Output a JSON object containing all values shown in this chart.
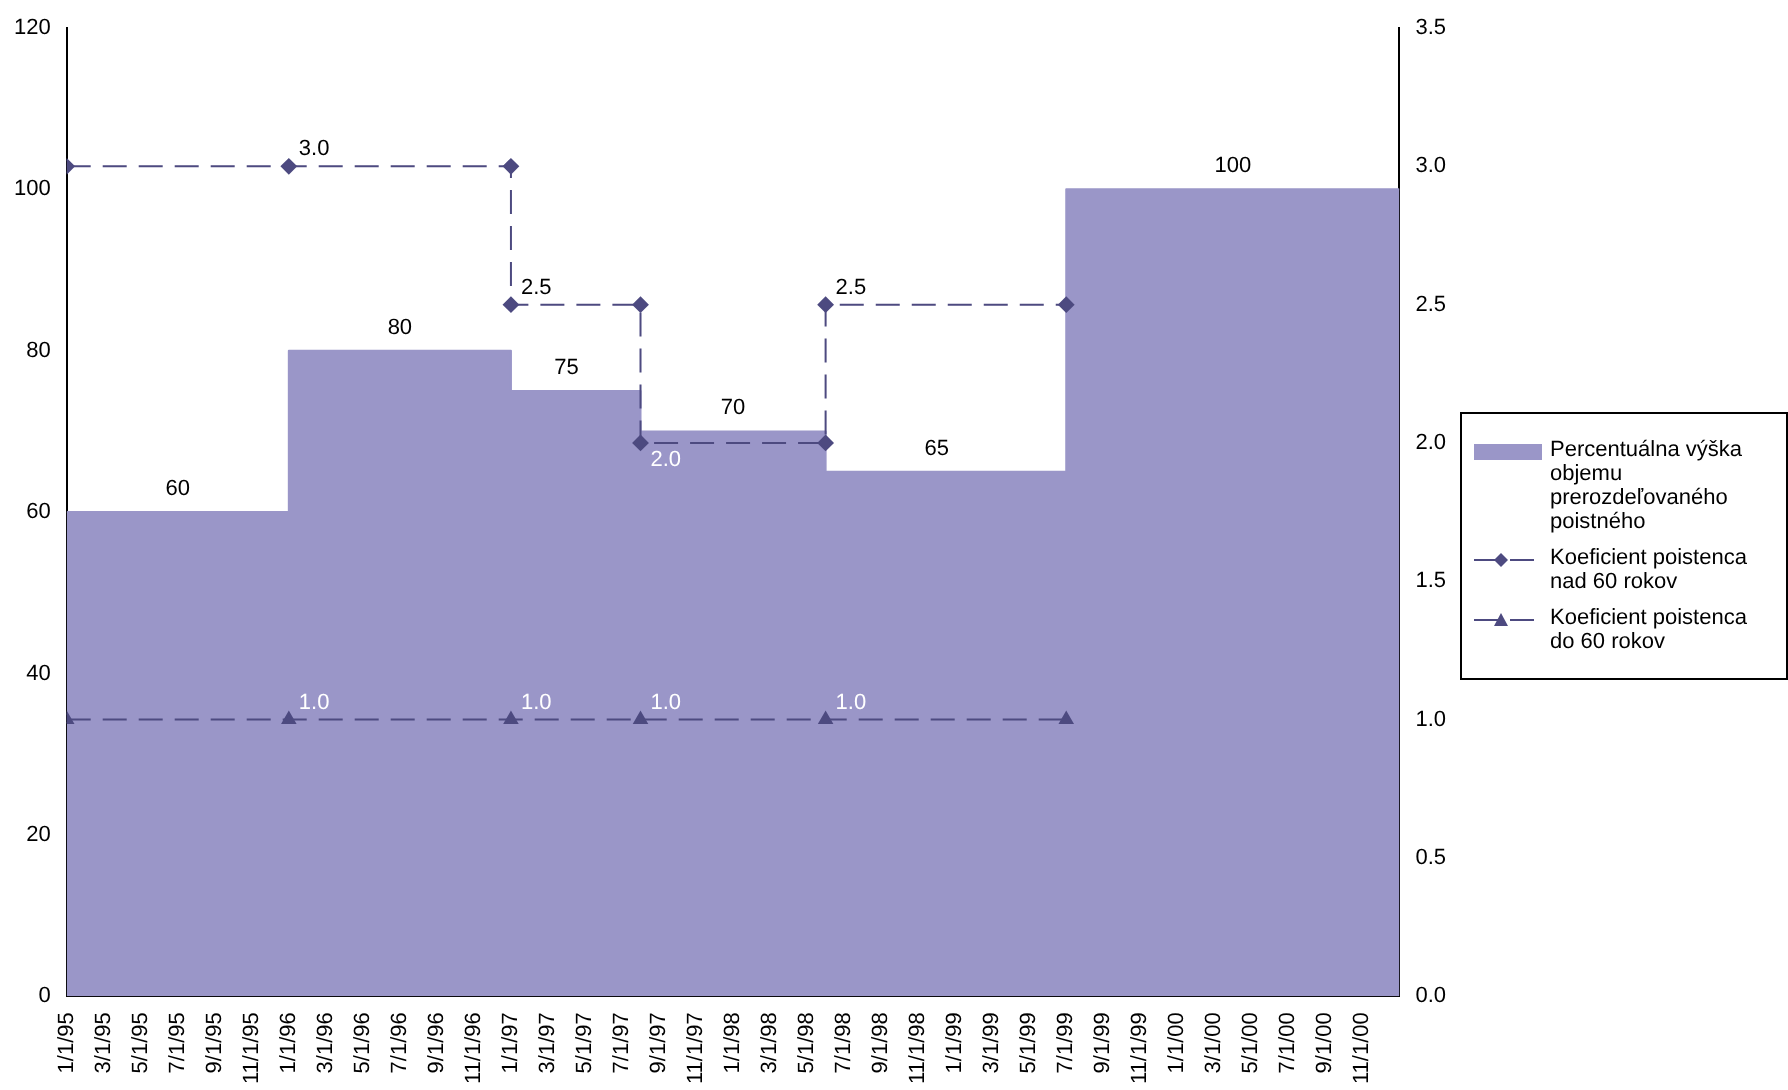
{
  "chart_data": {
    "type": "area",
    "x": [
      "1995-01",
      "1995-07",
      "1996-01",
      "1996-01",
      "1996-07",
      "1997-01",
      "1997-01",
      "1997-04",
      "1997-08",
      "1997-08",
      "1998-01",
      "1998-06",
      "1998-06",
      "1998-12",
      "1999-07",
      "1999-07",
      "2000-04",
      "2001-01"
    ],
    "series": [
      {
        "name": "Percentuálna výška objemu prerozdeľovaného poistného",
        "color": "#9a96c8",
        "values": [
          60,
          60,
          60,
          80,
          80,
          80,
          75,
          75,
          75,
          70,
          70,
          70,
          65,
          65,
          65,
          100,
          100,
          100
        ],
        "value_labels": [
          null,
          "60",
          null,
          null,
          "80",
          null,
          null,
          "75",
          null,
          null,
          "70",
          null,
          null,
          "65",
          null,
          null,
          "100",
          null
        ]
      },
      {
        "name": "Koeficient poistenca nad 60 rokov",
        "type": "line",
        "axis": "y2",
        "color": "#4d4a80",
        "marker": "diamond",
        "line_style": "dashed",
        "x": [
          "1995-01",
          "1996-01",
          "1997-01",
          "1997-01",
          "1997-08",
          "1997-08",
          "1998-06",
          "1998-06",
          "1999-07"
        ],
        "values": [
          3.0,
          3.0,
          3.0,
          2.5,
          2.5,
          2.0,
          2.0,
          2.5,
          2.5
        ],
        "value_labels": [
          null,
          "3.0",
          null,
          "2.5",
          null,
          "2.0",
          null,
          "2.5",
          null
        ]
      },
      {
        "name": "Koeficient poistenca do 60 rokov",
        "type": "line",
        "axis": "y2",
        "color": "#4d4a80",
        "marker": "triangle",
        "line_style": "dashed",
        "x": [
          "1995-01",
          "1996-01",
          "1997-01",
          "1997-08",
          "1998-06",
          "1999-07"
        ],
        "values": [
          1.0,
          1.0,
          1.0,
          1.0,
          1.0,
          1.0
        ],
        "value_labels": [
          null,
          "1.0",
          "1.0",
          "1.0",
          "1.0",
          null
        ]
      }
    ],
    "xlim": [
      "1995-01",
      "2001-01"
    ],
    "xticks": [
      {
        "value": "1995-01",
        "label": "1/1/95"
      },
      {
        "value": "1995-03",
        "label": "3/1/95"
      },
      {
        "value": "1995-05",
        "label": "5/1/95"
      },
      {
        "value": "1995-07",
        "label": "7/1/95"
      },
      {
        "value": "1995-09",
        "label": "9/1/95"
      },
      {
        "value": "1995-11",
        "label": "11/1/95"
      },
      {
        "value": "1996-01",
        "label": "1/1/96"
      },
      {
        "value": "1996-03",
        "label": "3/1/96"
      },
      {
        "value": "1996-05",
        "label": "5/1/96"
      },
      {
        "value": "1996-07",
        "label": "7/1/96"
      },
      {
        "value": "1996-09",
        "label": "9/1/96"
      },
      {
        "value": "1996-11",
        "label": "11/1/96"
      },
      {
        "value": "1997-01",
        "label": "1/1/97"
      },
      {
        "value": "1997-03",
        "label": "3/1/97"
      },
      {
        "value": "1997-05",
        "label": "5/1/97"
      },
      {
        "value": "1997-07",
        "label": "7/1/97"
      },
      {
        "value": "1997-09",
        "label": "9/1/97"
      },
      {
        "value": "1997-11",
        "label": "11/1/97"
      },
      {
        "value": "1998-01",
        "label": "1/1/98"
      },
      {
        "value": "1998-03",
        "label": "3/1/98"
      },
      {
        "value": "1998-05",
        "label": "5/1/98"
      },
      {
        "value": "1998-07",
        "label": "7/1/98"
      },
      {
        "value": "1998-09",
        "label": "9/1/98"
      },
      {
        "value": "1998-11",
        "label": "11/1/98"
      },
      {
        "value": "1999-01",
        "label": "1/1/99"
      },
      {
        "value": "1999-03",
        "label": "3/1/99"
      },
      {
        "value": "1999-05",
        "label": "5/1/99"
      },
      {
        "value": "1999-07",
        "label": "7/1/99"
      },
      {
        "value": "1999-09",
        "label": "9/1/99"
      },
      {
        "value": "1999-11",
        "label": "11/1/99"
      },
      {
        "value": "2000-01",
        "label": "1/1/00"
      },
      {
        "value": "2000-03",
        "label": "3/1/00"
      },
      {
        "value": "2000-05",
        "label": "5/1/00"
      },
      {
        "value": "2000-07",
        "label": "7/1/00"
      },
      {
        "value": "2000-09",
        "label": "9/1/00"
      },
      {
        "value": "2000-11",
        "label": "11/1/00"
      }
    ],
    "ylim": [
      0,
      120
    ],
    "yticks": [
      0,
      20,
      40,
      60,
      80,
      100,
      120
    ],
    "y2lim": [
      0,
      3.5
    ],
    "y2ticks": [
      {
        "value": 0,
        "label": "0.0"
      },
      {
        "value": 0.5,
        "label": "0.5"
      },
      {
        "value": 1,
        "label": "1.0"
      },
      {
        "value": 1.5,
        "label": "1.5"
      },
      {
        "value": 2,
        "label": "2.0"
      },
      {
        "value": 2.5,
        "label": "2.5"
      },
      {
        "value": 3,
        "label": "3.0"
      },
      {
        "value": 3.5,
        "label": "3.5"
      }
    ],
    "grid": false,
    "legend": "right"
  }
}
